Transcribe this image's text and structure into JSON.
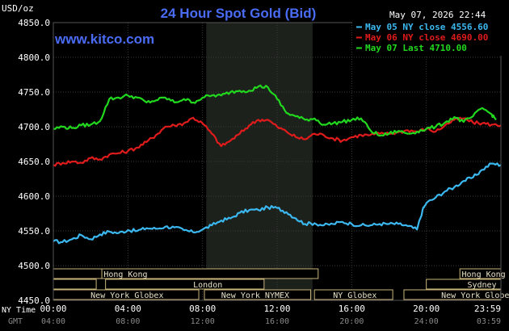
{
  "chart_data": {
    "type": "line",
    "title": "24 Hour Spot Gold (Bid)",
    "source": "www.kitco.com",
    "timestamp": "May 07, 2026 22:44",
    "ylabel": "USD/oz",
    "ylim": [
      4450,
      4850
    ],
    "y_ticks": [
      "4850.0",
      "4800.0",
      "4750.0",
      "4700.0",
      "4650.0",
      "4600.0",
      "4550.0",
      "4500.0",
      "4450.0"
    ],
    "xlim": [
      0,
      24
    ],
    "x_ticks_ny": [
      "00:00",
      "04:00",
      "08:00",
      "12:00",
      "16:00",
      "20:00",
      "23:59"
    ],
    "x_ticks_gmt": [
      "04:00",
      "08:00",
      "12:00",
      "16:00",
      "20:00",
      "24:00",
      "03:59"
    ],
    "x_axis_labels": {
      "ny": "NY Time",
      "gmt": "GMT"
    },
    "grid": true,
    "legend_position": "top-right",
    "highlight_hours": [
      8.2,
      13.9
    ],
    "series": [
      {
        "name": "May 05 NY close 4556.60",
        "color": "#3cb8f0",
        "points": [
          [
            0,
            4535
          ],
          [
            0.5,
            4534
          ],
          [
            1,
            4538
          ],
          [
            1.5,
            4544
          ],
          [
            2,
            4538
          ],
          [
            2.5,
            4545
          ],
          [
            3,
            4549
          ],
          [
            3.5,
            4547
          ],
          [
            4,
            4551
          ],
          [
            4.5,
            4550
          ],
          [
            5,
            4554
          ],
          [
            5.5,
            4553
          ],
          [
            6,
            4556
          ],
          [
            6.5,
            4555
          ],
          [
            7,
            4551
          ],
          [
            7.5,
            4548
          ],
          [
            8,
            4552
          ],
          [
            8.5,
            4558
          ],
          [
            9,
            4565
          ],
          [
            9.5,
            4568
          ],
          [
            10,
            4576
          ],
          [
            10.5,
            4580
          ],
          [
            11,
            4580
          ],
          [
            11.5,
            4584
          ],
          [
            12,
            4583
          ],
          [
            12.5,
            4577
          ],
          [
            13,
            4568
          ],
          [
            13.5,
            4560
          ],
          [
            14,
            4561
          ],
          [
            14.5,
            4558
          ],
          [
            15,
            4560
          ],
          [
            15.5,
            4563
          ],
          [
            16,
            4560
          ],
          [
            16.5,
            4558
          ],
          [
            17,
            4558
          ],
          [
            17.5,
            4560
          ],
          [
            18,
            4560
          ],
          [
            18.5,
            4560
          ],
          [
            19,
            4557
          ],
          [
            19.5,
            4552
          ],
          [
            19.8,
            4580
          ],
          [
            20,
            4590
          ],
          [
            20.5,
            4598
          ],
          [
            21,
            4607
          ],
          [
            21.5,
            4613
          ],
          [
            22,
            4622
          ],
          [
            22.5,
            4627
          ],
          [
            23,
            4638
          ],
          [
            23.5,
            4647
          ],
          [
            24,
            4645
          ]
        ]
      },
      {
        "name": "May 06 NY close 4690.00",
        "color": "#e01b1b",
        "points": [
          [
            0,
            4645
          ],
          [
            0.5,
            4648
          ],
          [
            1,
            4650
          ],
          [
            1.5,
            4648
          ],
          [
            2,
            4655
          ],
          [
            2.5,
            4653
          ],
          [
            3,
            4660
          ],
          [
            3.5,
            4662
          ],
          [
            4,
            4665
          ],
          [
            4.5,
            4670
          ],
          [
            5,
            4678
          ],
          [
            5.5,
            4688
          ],
          [
            6,
            4700
          ],
          [
            6.5,
            4702
          ],
          [
            7,
            4705
          ],
          [
            7.5,
            4713
          ],
          [
            8,
            4705
          ],
          [
            8.5,
            4690
          ],
          [
            9,
            4672
          ],
          [
            9.5,
            4680
          ],
          [
            10,
            4690
          ],
          [
            10.5,
            4702
          ],
          [
            11,
            4710
          ],
          [
            11.5,
            4710
          ],
          [
            12,
            4700
          ],
          [
            12.5,
            4693
          ],
          [
            13,
            4685
          ],
          [
            13.5,
            4682
          ],
          [
            14,
            4690
          ],
          [
            14.5,
            4688
          ],
          [
            15,
            4683
          ],
          [
            15.5,
            4680
          ],
          [
            16,
            4685
          ],
          [
            16.5,
            4688
          ],
          [
            17,
            4688
          ],
          [
            17.5,
            4690
          ],
          [
            18,
            4690
          ],
          [
            18.5,
            4692
          ],
          [
            19,
            4695
          ],
          [
            19.5,
            4693
          ],
          [
            20,
            4697
          ],
          [
            20.5,
            4693
          ],
          [
            21,
            4702
          ],
          [
            21.5,
            4710
          ],
          [
            22,
            4712
          ],
          [
            22.5,
            4706
          ],
          [
            23,
            4705
          ],
          [
            23.5,
            4703
          ],
          [
            24,
            4702
          ]
        ]
      },
      {
        "name": "May 07 Last 4710.00",
        "color": "#22d81e",
        "points": [
          [
            0,
            4697
          ],
          [
            0.5,
            4700
          ],
          [
            1,
            4698
          ],
          [
            1.5,
            4702
          ],
          [
            2,
            4703
          ],
          [
            2.5,
            4708
          ],
          [
            3,
            4740
          ],
          [
            3.5,
            4742
          ],
          [
            4,
            4745
          ],
          [
            4.5,
            4742
          ],
          [
            5,
            4735
          ],
          [
            5.5,
            4738
          ],
          [
            6,
            4742
          ],
          [
            6.5,
            4735
          ],
          [
            7,
            4740
          ],
          [
            7.5,
            4735
          ],
          [
            8,
            4742
          ],
          [
            8.5,
            4745
          ],
          [
            9,
            4745
          ],
          [
            9.5,
            4750
          ],
          [
            10,
            4752
          ],
          [
            10.5,
            4752
          ],
          [
            11,
            4758
          ],
          [
            11.5,
            4757
          ],
          [
            12,
            4740
          ],
          [
            12.5,
            4720
          ],
          [
            13,
            4715
          ],
          [
            13.5,
            4710
          ],
          [
            14,
            4712
          ],
          [
            14.5,
            4703
          ],
          [
            15,
            4705
          ],
          [
            15.5,
            4707
          ],
          [
            16,
            4710
          ],
          [
            16.5,
            4712
          ],
          [
            17,
            4695
          ],
          [
            17.5,
            4687
          ],
          [
            18,
            4690
          ],
          [
            18.5,
            4694
          ],
          [
            19,
            4690
          ],
          [
            19.5,
            4693
          ],
          [
            20,
            4697
          ],
          [
            20.5,
            4700
          ],
          [
            21,
            4706
          ],
          [
            21.5,
            4714
          ],
          [
            22,
            4707
          ],
          [
            22.5,
            4715
          ],
          [
            23,
            4727
          ],
          [
            23.5,
            4718
          ],
          [
            23.74,
            4710
          ]
        ]
      }
    ],
    "sessions": [
      {
        "label": "Hong Kong",
        "start": 2.6,
        "end": 14.2,
        "row": 0,
        "text_at": 2.7
      },
      {
        "label": "",
        "start": 0,
        "end": 2.6,
        "row": 0,
        "text_at": 0
      },
      {
        "label": "Hong Kong",
        "start": 21.8,
        "end": 24,
        "row": 0,
        "text_at": 21.9
      },
      {
        "label": "",
        "start": 0,
        "end": 2.3,
        "row": 1,
        "text_at": 0
      },
      {
        "label": "London",
        "start": 2.8,
        "end": 11.3,
        "row": 1,
        "text_at": 7.5
      },
      {
        "label": "Sydney",
        "start": 20.0,
        "end": 24,
        "row": 1,
        "text_at": 22.2
      },
      {
        "label": "New York Globex",
        "start": 0,
        "end": 7.8,
        "row": 2,
        "text_at": 2.0
      },
      {
        "label": "New York NYMEX",
        "start": 8.1,
        "end": 13.8,
        "row": 2,
        "text_at": 9.0
      },
      {
        "label": "NY Globex",
        "start": 14.0,
        "end": 18.2,
        "row": 2,
        "text_at": 15.0
      },
      {
        "label": "New York Globex",
        "start": 18.8,
        "end": 24,
        "row": 2,
        "text_at": 20.8
      }
    ]
  }
}
